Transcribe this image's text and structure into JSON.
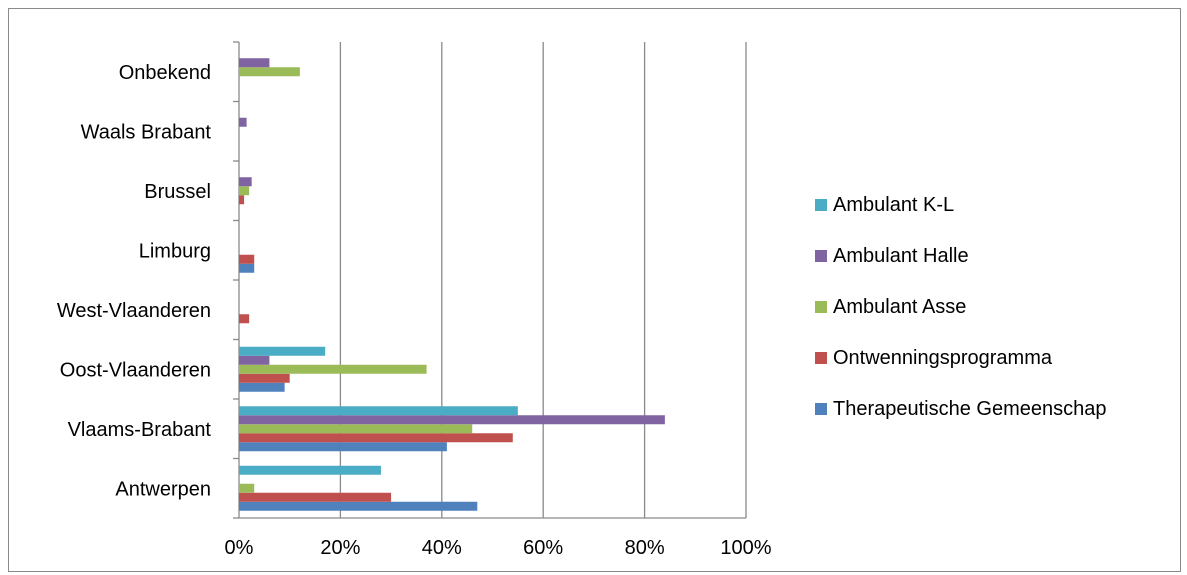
{
  "chart_data": {
    "type": "bar",
    "orientation": "horizontal",
    "categories": [
      "Antwerpen",
      "Vlaams-Brabant",
      "Oost-Vlaanderen",
      "West-Vlaanderen",
      "Limburg",
      "Brussel",
      "Waals Brabant",
      "Onbekend"
    ],
    "series": [
      {
        "name": "Therapeutische Gemeenschap",
        "color": "#4F81BD",
        "values": [
          47,
          41,
          9,
          0,
          3,
          0,
          0,
          0
        ]
      },
      {
        "name": "Ontwenningsprogramma",
        "color": "#C0504D",
        "values": [
          30,
          54,
          10,
          2,
          3,
          1,
          0,
          0
        ]
      },
      {
        "name": "Ambulant Asse",
        "color": "#9BBB59",
        "values": [
          3,
          46,
          37,
          0,
          0,
          2,
          0,
          12
        ]
      },
      {
        "name": "Ambulant Halle",
        "color": "#8064A2",
        "values": [
          0,
          84,
          6,
          0,
          0,
          2.5,
          1.5,
          6
        ]
      },
      {
        "name": "Ambulant K-L",
        "color": "#4BACC6",
        "values": [
          28,
          55,
          17,
          0,
          0,
          0,
          0,
          0
        ]
      }
    ],
    "xlim": [
      0,
      100
    ],
    "x_ticks": [
      "0%",
      "20%",
      "40%",
      "60%",
      "80%",
      "100%"
    ],
    "grid": "vertical",
    "legend_position": "right",
    "legend_order": [
      "Ambulant K-L",
      "Ambulant Halle",
      "Ambulant Asse",
      "Ontwenningsprogramma",
      "Therapeutische Gemeenschap"
    ]
  }
}
